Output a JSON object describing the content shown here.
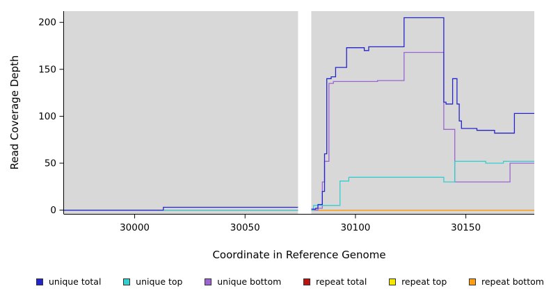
{
  "chart_data": {
    "type": "line",
    "interpolation": "step-after",
    "title": "",
    "xlabel": "Coordinate in Reference Genome",
    "ylabel": "Read Coverage Depth",
    "xlim": [
      29968,
      30181
    ],
    "ylim": [
      -4,
      212
    ],
    "xticks": [
      30000,
      30050,
      30100,
      30150
    ],
    "yticks": [
      0,
      50,
      100,
      150,
      200
    ],
    "plot_background": "#d8d8d8",
    "outer_background": "#ffffff",
    "grid": false,
    "legend_position": "bottom",
    "gap_band": {
      "from": 30074,
      "to": 30080,
      "color": "#ffffff"
    },
    "draw_order": [
      3,
      4,
      5,
      2,
      1,
      0
    ],
    "series": [
      {
        "name": "unique total",
        "color": "#2424cc",
        "segments": [
          [
            [
              29968,
              0
            ],
            [
              30013,
              3
            ],
            [
              30074,
              3
            ]
          ],
          [
            [
              30080,
              1
            ],
            [
              30082,
              2
            ],
            [
              30083,
              6
            ],
            [
              30085,
              20
            ],
            [
              30086,
              60
            ],
            [
              30087,
              140
            ],
            [
              30089,
              142
            ],
            [
              30091,
              152
            ],
            [
              30096,
              173
            ],
            [
              30104,
              170
            ],
            [
              30106,
              174
            ],
            [
              30122,
              205
            ],
            [
              30139,
              205
            ],
            [
              30140,
              115
            ],
            [
              30141,
              113
            ],
            [
              30144,
              140
            ],
            [
              30146,
              113
            ],
            [
              30147,
              95
            ],
            [
              30148,
              87
            ],
            [
              30155,
              85
            ],
            [
              30163,
              82
            ],
            [
              30172,
              103
            ],
            [
              30181,
              103
            ]
          ]
        ]
      },
      {
        "name": "unique top",
        "color": "#35cdcd",
        "segments": [
          [
            [
              29968,
              0
            ],
            [
              30074,
              0
            ]
          ],
          [
            [
              30080,
              0
            ],
            [
              30081,
              5
            ],
            [
              30093,
              31
            ],
            [
              30097,
              35
            ],
            [
              30139,
              35
            ],
            [
              30140,
              30
            ],
            [
              30145,
              52
            ],
            [
              30159,
              50
            ],
            [
              30167,
              52
            ],
            [
              30181,
              52
            ]
          ]
        ]
      },
      {
        "name": "unique bottom",
        "color": "#9c63d3",
        "segments": [
          [
            [
              29968,
              0
            ],
            [
              30074,
              0
            ]
          ],
          [
            [
              30080,
              0
            ],
            [
              30083,
              2
            ],
            [
              30085,
              30
            ],
            [
              30086,
              52
            ],
            [
              30088,
              135
            ],
            [
              30090,
              137
            ],
            [
              30110,
              138
            ],
            [
              30122,
              168
            ],
            [
              30139,
              168
            ],
            [
              30140,
              86
            ],
            [
              30145,
              30
            ],
            [
              30170,
              50
            ],
            [
              30181,
              50
            ]
          ]
        ]
      },
      {
        "name": "repeat total",
        "color": "#bb1111",
        "segments": [
          [
            [
              29968,
              0
            ],
            [
              30074,
              0
            ]
          ],
          [
            [
              30080,
              0
            ],
            [
              30181,
              0
            ]
          ]
        ]
      },
      {
        "name": "repeat top",
        "color": "#f5e600",
        "segments": [
          [
            [
              29968,
              0
            ],
            [
              30074,
              0
            ]
          ],
          [
            [
              30080,
              0
            ],
            [
              30181,
              0
            ]
          ]
        ]
      },
      {
        "name": "repeat bottom",
        "color": "#ff9e0e",
        "segments": [
          [
            [
              29968,
              0
            ],
            [
              30074,
              0
            ]
          ],
          [
            [
              30080,
              0
            ],
            [
              30181,
              0
            ]
          ]
        ]
      }
    ]
  }
}
